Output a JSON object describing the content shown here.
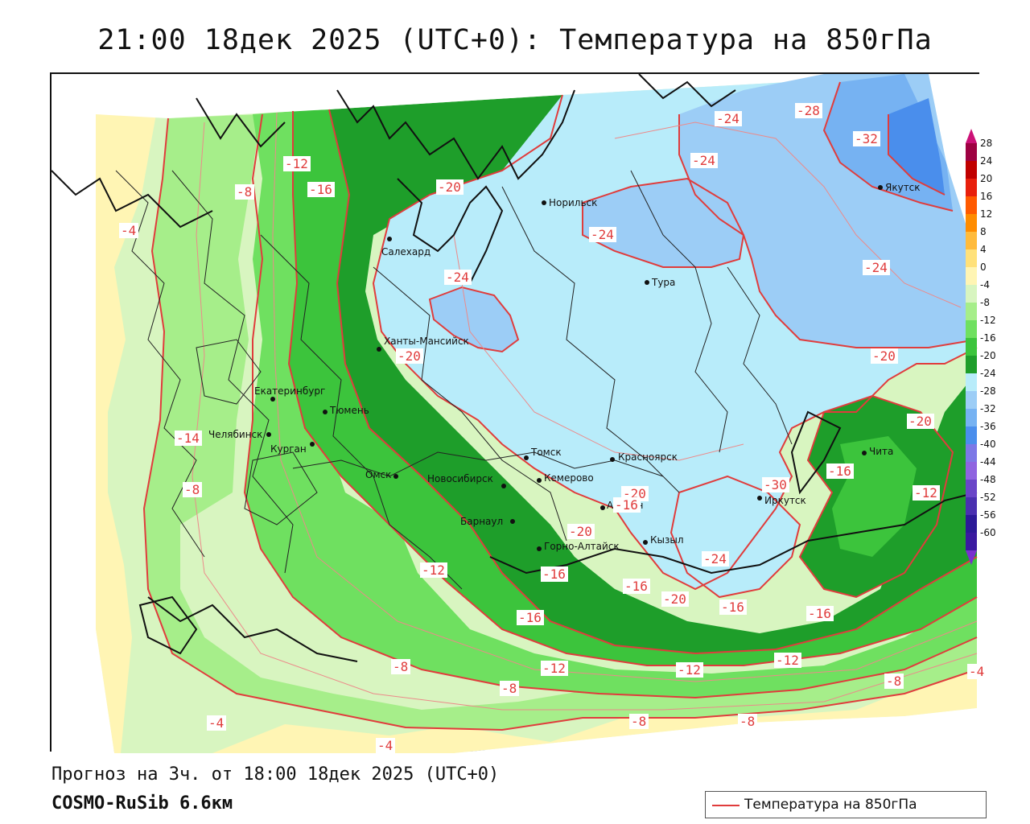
{
  "title": "21:00 18дек 2025 (UTC+0): Температура на 850гПа",
  "forecast_info": "Прогноз на 3ч. от 18:00 18дек 2025 (UTC+0)",
  "model_name": "COSMO-RuSib 6.6км",
  "legend": {
    "series_label": "Температура на 850гПа",
    "line_color": "#e03c3c"
  },
  "color_scale": {
    "ticks": [
      "28",
      "24",
      "20",
      "16",
      "12",
      "8",
      "4",
      "0",
      "-4",
      "-8",
      "-12",
      "-16",
      "-20",
      "-24",
      "-28",
      "-32",
      "-36",
      "-40",
      "-44",
      "-48",
      "-52",
      "-56",
      "-60"
    ],
    "colors": [
      "#9e0142",
      "#c00000",
      "#e8200c",
      "#ff5a00",
      "#ff8c00",
      "#ffbb3c",
      "#ffe17a",
      "#fff5b4",
      "#d8f5c0",
      "#a6ee8a",
      "#6fe060",
      "#3cc43c",
      "#1e9e2a",
      "#b8ecfa",
      "#9ccdf6",
      "#76b2f2",
      "#4a8eec",
      "#7c78e6",
      "#8f64e0",
      "#6a46c8",
      "#4a30b0",
      "#2c1a98",
      "#3a1aa0"
    ]
  },
  "cities": [
    {
      "name": "Норильск"
    },
    {
      "name": "Якутск"
    },
    {
      "name": "Салехард"
    },
    {
      "name": "Тура"
    },
    {
      "name": "Ханты-Мансийск"
    },
    {
      "name": "Екатеринбург"
    },
    {
      "name": "Тюмень"
    },
    {
      "name": "Челябинск"
    },
    {
      "name": "Курган"
    },
    {
      "name": "Омск"
    },
    {
      "name": "Новосибирск"
    },
    {
      "name": "Томск"
    },
    {
      "name": "Кемерово"
    },
    {
      "name": "Красноярск"
    },
    {
      "name": "Барнаул"
    },
    {
      "name": "Абакан"
    },
    {
      "name": "Горно-Алтайск"
    },
    {
      "name": "Кызыл"
    },
    {
      "name": "Иркутск"
    },
    {
      "name": "Чита"
    }
  ],
  "isotherm_labels": [
    "-24",
    "-28",
    "-32",
    "-24",
    "-12",
    "-16",
    "-20",
    "-8",
    "-4",
    "-24",
    "-24",
    "-24",
    "-20",
    "-20",
    "-14",
    "-8",
    "-16",
    "-20",
    "-30",
    "-20",
    "-16",
    "-24",
    "-20",
    "-12",
    "-16",
    "-16",
    "-16",
    "-20",
    "-16",
    "-16",
    "-12",
    "-8",
    "-12",
    "-12",
    "-12",
    "-8",
    "-8",
    "-4",
    "-8",
    "-8",
    "-4",
    "-4"
  ]
}
